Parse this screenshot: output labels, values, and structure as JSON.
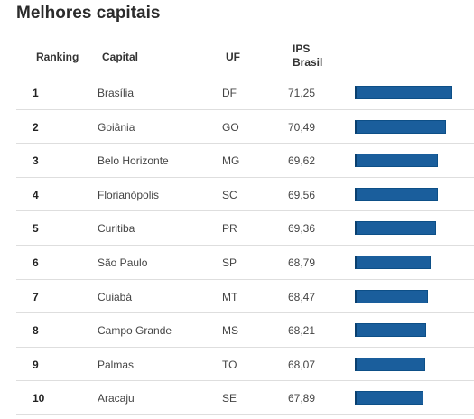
{
  "chart_data": {
    "type": "table",
    "title": "Melhores capitais",
    "columns": [
      "Ranking",
      "Capital",
      "UF",
      "IPS\nBrasil"
    ],
    "rows": [
      {
        "rank": "1",
        "capital": "Brasília",
        "uf": "DF",
        "ips": "71,25",
        "value": 71.25
      },
      {
        "rank": "2",
        "capital": "Goiânia",
        "uf": "GO",
        "ips": "70,49",
        "value": 70.49
      },
      {
        "rank": "3",
        "capital": "Belo Horizonte",
        "uf": "MG",
        "ips": "69,62",
        "value": 69.62
      },
      {
        "rank": "4",
        "capital": "Florianópolis",
        "uf": "SC",
        "ips": "69,56",
        "value": 69.56
      },
      {
        "rank": "5",
        "capital": "Curitiba",
        "uf": "PR",
        "ips": "69,36",
        "value": 69.36
      },
      {
        "rank": "6",
        "capital": "São Paulo",
        "uf": "SP",
        "ips": "68,79",
        "value": 68.79
      },
      {
        "rank": "7",
        "capital": "Cuiabá",
        "uf": "MT",
        "ips": "68,47",
        "value": 68.47
      },
      {
        "rank": "8",
        "capital": "Campo Grande",
        "uf": "MS",
        "ips": "68,21",
        "value": 68.21
      },
      {
        "rank": "9",
        "capital": "Palmas",
        "uf": "TO",
        "ips": "68,07",
        "value": 68.07
      },
      {
        "rank": "10",
        "capital": "Aracaju",
        "uf": "SE",
        "ips": "67,89",
        "value": 67.89
      }
    ],
    "bar_color": "#1a5e9c",
    "value_max": 71.25
  }
}
